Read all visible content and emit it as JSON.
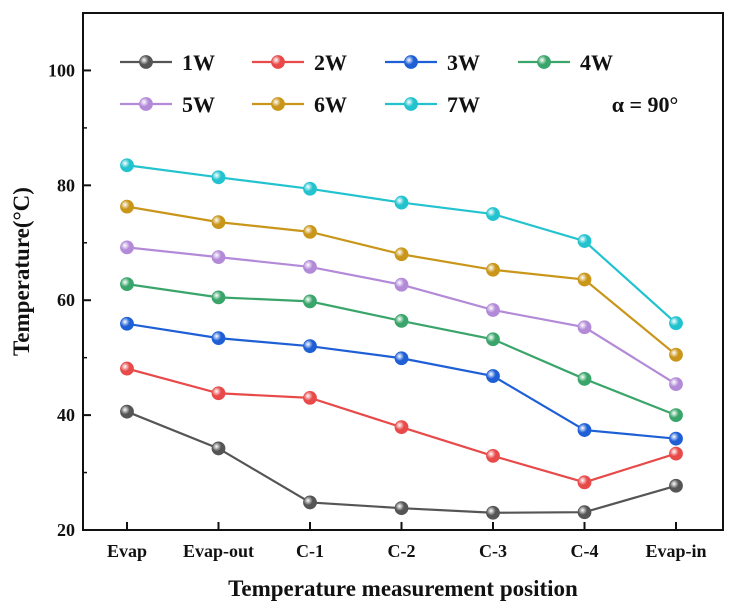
{
  "chart_data": {
    "type": "line",
    "title": "",
    "xlabel": "Temperature measurement position",
    "ylabel": "Temperature(°C)",
    "categories": [
      "Evap",
      "Evap-out",
      "C-1",
      "C-2",
      "C-3",
      "C-4",
      "Evap-in"
    ],
    "ylim": [
      20,
      110
    ],
    "yticks": [
      20,
      40,
      60,
      80,
      100
    ],
    "grid": false,
    "legend_position": "top",
    "annotation": "α = 90°",
    "series": [
      {
        "name": "1W",
        "color": "#555555",
        "values": [
          40.6,
          34.2,
          24.8,
          23.8,
          23.0,
          23.1,
          27.7
        ]
      },
      {
        "name": "2W",
        "color": "#e84a4a",
        "values": [
          48.1,
          43.8,
          43.0,
          37.9,
          32.9,
          28.3,
          33.3
        ]
      },
      {
        "name": "3W",
        "color": "#1f5fd6",
        "values": [
          55.9,
          53.4,
          52.0,
          49.9,
          46.8,
          37.4,
          35.9
        ]
      },
      {
        "name": "4W",
        "color": "#3aa56a",
        "values": [
          62.8,
          60.5,
          59.8,
          56.4,
          53.2,
          46.3,
          40.0
        ]
      },
      {
        "name": "5W",
        "color": "#b28ad8",
        "values": [
          69.2,
          67.5,
          65.8,
          62.7,
          58.3,
          55.3,
          45.4
        ]
      },
      {
        "name": "6W",
        "color": "#c9961a",
        "values": [
          76.3,
          73.6,
          71.9,
          68.0,
          65.3,
          63.6,
          50.5
        ]
      },
      {
        "name": "7W",
        "color": "#22c3cf",
        "values": [
          83.5,
          81.4,
          79.4,
          77.0,
          75.0,
          70.3,
          56.0
        ]
      }
    ]
  }
}
